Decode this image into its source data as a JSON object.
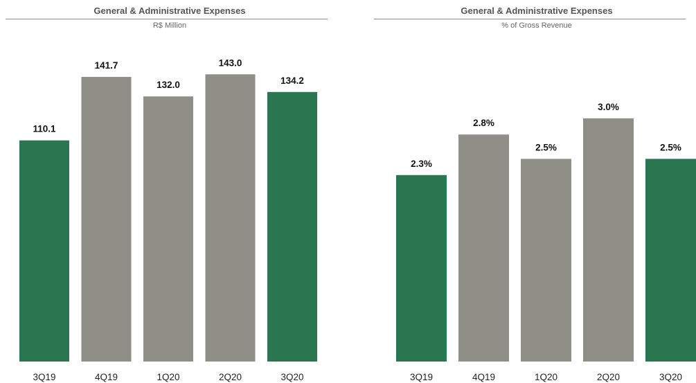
{
  "chart_data": [
    {
      "type": "bar",
      "title": "General & Administrative Expenses",
      "subtitle": "R$ Million",
      "categories": [
        "3Q19",
        "4Q19",
        "1Q20",
        "2Q20",
        "3Q20"
      ],
      "values": [
        110.1,
        141.7,
        132.0,
        143.0,
        134.2
      ],
      "data_labels": [
        "110.1",
        "141.7",
        "132.0",
        "143.0",
        "134.2"
      ],
      "bar_colors": [
        "#2a7650",
        "#8f8f87",
        "#8f8f87",
        "#8f8f87",
        "#2a7650"
      ],
      "ylim": [
        0,
        160
      ],
      "grid": false,
      "legend": "none"
    },
    {
      "type": "bar",
      "title": "General & Administrative Expenses",
      "subtitle": "% of Gross Revenue",
      "categories": [
        "3Q19",
        "4Q19",
        "1Q20",
        "2Q20",
        "3Q20"
      ],
      "values": [
        2.3,
        2.8,
        2.5,
        3.0,
        2.5
      ],
      "data_labels": [
        "2.3%",
        "2.8%",
        "2.5%",
        "3.0%",
        "2.5%"
      ],
      "bar_colors": [
        "#2a7650",
        "#8f8f87",
        "#8f8f87",
        "#8f8f87",
        "#2a7650"
      ],
      "ylim": [
        0,
        3.4
      ],
      "grid": false,
      "legend": "none"
    }
  ]
}
